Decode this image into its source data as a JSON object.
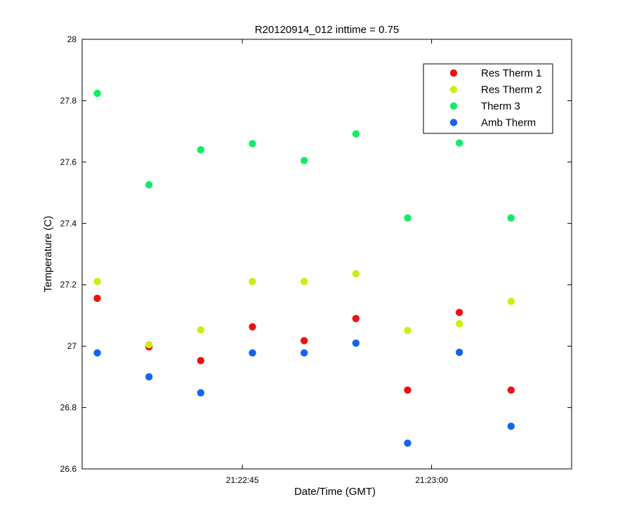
{
  "chart_data": {
    "type": "scatter",
    "title": "R20120914_012 inttime = 0.75",
    "xlabel": "Date/Time (GMT)",
    "ylabel": "Temperature (C)",
    "xlim": [
      "21:22:32.3",
      "21:23:11.1"
    ],
    "ylim": [
      26.6,
      28
    ],
    "x_ticks": [
      "21:22:45",
      "21:23:00"
    ],
    "y_ticks": [
      26.6,
      26.8,
      27,
      27.2,
      27.4,
      27.6,
      27.8,
      28
    ],
    "y_tick_labels": [
      "26.6",
      "26.8",
      "27",
      "27.2",
      "27.4",
      "27.6",
      "27.8",
      "28"
    ],
    "x": [
      "21:22:33.5",
      "21:22:37.6",
      "21:22:41.7",
      "21:22:45.8",
      "21:22:49.9",
      "21:22:54.0",
      "21:22:58.1",
      "21:23:02.2",
      "21:23:06.3"
    ],
    "grid": false,
    "legend_position": "top-right",
    "series": [
      {
        "name": "Res Therm 1",
        "color": "#ee1111",
        "values": [
          27.156,
          26.998,
          26.953,
          27.063,
          27.018,
          27.09,
          26.857,
          27.11,
          26.857
        ]
      },
      {
        "name": "Res Therm 2",
        "color": "#ccee11",
        "values": [
          27.211,
          27.005,
          27.053,
          27.211,
          27.211,
          27.236,
          27.051,
          27.073,
          27.146
        ]
      },
      {
        "name": "Therm 3",
        "color": "#11ee66",
        "values": [
          27.824,
          27.526,
          27.64,
          27.66,
          27.605,
          27.692,
          27.418,
          27.662,
          27.418
        ]
      },
      {
        "name": "Amb Therm",
        "color": "#1166ee",
        "values": [
          26.978,
          26.9,
          26.848,
          26.978,
          26.978,
          27.01,
          26.684,
          26.98,
          26.739
        ]
      }
    ]
  }
}
